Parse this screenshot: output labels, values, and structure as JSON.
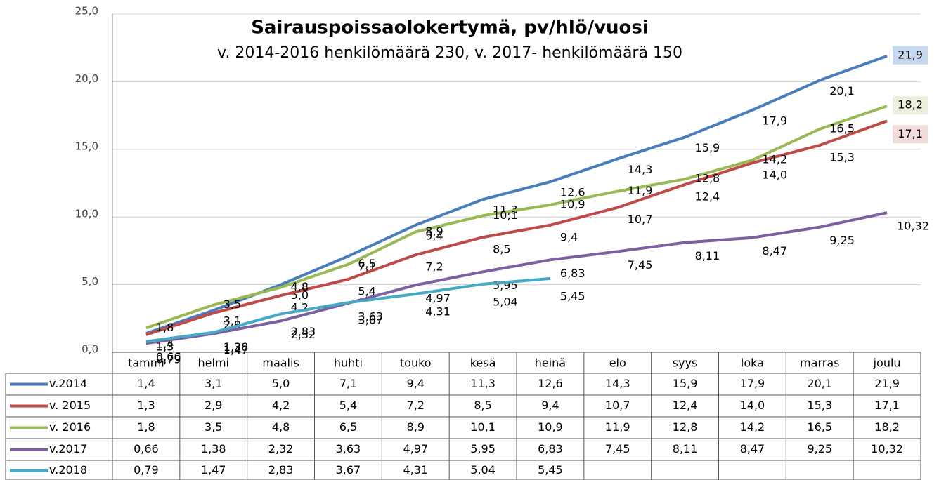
{
  "chart_data": {
    "type": "line",
    "title": "Sairauspoissaolokertymä,  pv/hlö/vuosi",
    "subtitle": "v. 2014-2016 henkilömäärä 230, v. 2017- henkilömäärä 150",
    "categories": [
      "tammi",
      "helmi",
      "maalis",
      "huhti",
      "touko",
      "kesä",
      "heinä",
      "elo",
      "syys",
      "loka",
      "marras",
      "joulu"
    ],
    "ylim": [
      0,
      25
    ],
    "yticks": [
      {
        "value": 0,
        "label": "0,0"
      },
      {
        "value": 5,
        "label": "5,0"
      },
      {
        "value": 10,
        "label": "10,0"
      },
      {
        "value": 15,
        "label": "15,0"
      },
      {
        "value": 20,
        "label": "20,0"
      },
      {
        "value": 25,
        "label": "25,0"
      }
    ],
    "grid": true,
    "series": [
      {
        "name": "v.2014",
        "color": "#4a7ebb",
        "values": [
          1.4,
          3.1,
          5.0,
          7.1,
          9.4,
          11.3,
          12.6,
          14.3,
          15.9,
          17.9,
          20.1,
          21.9
        ],
        "value_labels": [
          "1,4",
          "3,1",
          "5,0",
          "7,1",
          "9,4",
          "11,3",
          "12,6",
          "14,3",
          "15,9",
          "17,9",
          "20,1",
          "21,9"
        ]
      },
      {
        "name": "v. 2015",
        "color": "#be4b48",
        "values": [
          1.3,
          2.9,
          4.2,
          5.4,
          7.2,
          8.5,
          9.4,
          10.7,
          12.4,
          14.0,
          15.3,
          17.1
        ],
        "value_labels": [
          "1,3",
          "2,9",
          "4,2",
          "5,4",
          "7,2",
          "8,5",
          "9,4",
          "10,7",
          "12,4",
          "14,0",
          "15,3",
          "17,1"
        ]
      },
      {
        "name": "v. 2016",
        "color": "#98b954",
        "values": [
          1.8,
          3.5,
          4.8,
          6.5,
          8.9,
          10.1,
          10.9,
          11.9,
          12.8,
          14.2,
          16.5,
          18.2
        ],
        "value_labels": [
          "1,8",
          "3,5",
          "4,8",
          "6,5",
          "8,9",
          "10,1",
          "10,9",
          "11,9",
          "12,8",
          "14,2",
          "16,5",
          "18,2"
        ]
      },
      {
        "name": "v.2017",
        "color": "#7d60a0",
        "values": [
          0.66,
          1.38,
          2.32,
          3.63,
          4.97,
          5.95,
          6.83,
          7.45,
          8.11,
          8.47,
          9.25,
          10.32
        ],
        "value_labels": [
          "0,66",
          "1,38",
          "2,32",
          "3,63",
          "4,97",
          "5,95",
          "6,83",
          "7,45",
          "8,11",
          "8,47",
          "9,25",
          "10,32"
        ]
      },
      {
        "name": "v.2018",
        "color": "#46aac5",
        "values": [
          0.79,
          1.47,
          2.83,
          3.67,
          4.31,
          5.04,
          5.45,
          null,
          null,
          null,
          null,
          null
        ],
        "value_labels": [
          "0,79",
          "1,47",
          "2,83",
          "3,67",
          "4,31",
          "5,04",
          "5,45",
          null,
          null,
          null,
          null,
          null
        ]
      }
    ]
  }
}
